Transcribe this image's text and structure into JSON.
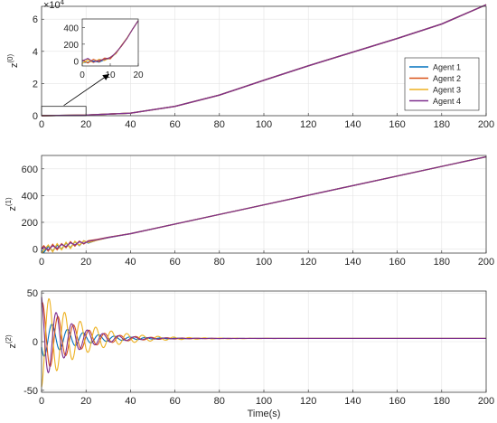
{
  "figure": {
    "xlabel": "Time(s)"
  },
  "colors": {
    "agent1": "#0072BD",
    "agent2": "#D95319",
    "agent3": "#EDB120",
    "agent4": "#7E2F8E",
    "grid": "#e3e3e3",
    "axis": "#262626"
  },
  "icons": {
    "arrow": "annotation-arrow-icon"
  },
  "chart_data": [
    {
      "type": "line",
      "ylabel": "z",
      "ylabel_sup": "(0)",
      "y_exponent_label": "×10",
      "y_exponent_sup": "4",
      "xlim": [
        0,
        200
      ],
      "ylim": [
        0,
        6.8
      ],
      "xticks": [
        0,
        20,
        40,
        60,
        80,
        100,
        120,
        140,
        160,
        180,
        200
      ],
      "yticks": [
        0,
        2,
        4,
        6
      ],
      "grid": true,
      "legend": {
        "position": "right",
        "entries": [
          "Agent 1",
          "Agent 2",
          "Agent 3",
          "Agent 4"
        ]
      },
      "series": [
        {
          "name": "Agent 1",
          "x": [
            0,
            20,
            40,
            60,
            80,
            100,
            120,
            140,
            160,
            180,
            200
          ],
          "values": [
            0,
            0.04,
            0.16,
            0.58,
            1.28,
            2.2,
            3.1,
            3.95,
            4.8,
            5.7,
            6.9
          ]
        },
        {
          "name": "Agent 2",
          "x": [
            0,
            20,
            40,
            60,
            80,
            100,
            120,
            140,
            160,
            180,
            200
          ],
          "values": [
            0,
            0.04,
            0.16,
            0.58,
            1.28,
            2.2,
            3.1,
            3.95,
            4.8,
            5.7,
            6.9
          ]
        },
        {
          "name": "Agent 3",
          "x": [
            0,
            20,
            40,
            60,
            80,
            100,
            120,
            140,
            160,
            180,
            200
          ],
          "values": [
            0,
            0.04,
            0.16,
            0.58,
            1.28,
            2.2,
            3.1,
            3.95,
            4.8,
            5.7,
            6.9
          ]
        },
        {
          "name": "Agent 4",
          "x": [
            0,
            20,
            40,
            60,
            80,
            100,
            120,
            140,
            160,
            180,
            200
          ],
          "values": [
            0,
            0.04,
            0.16,
            0.58,
            1.28,
            2.2,
            3.1,
            3.95,
            4.8,
            5.7,
            6.9
          ]
        }
      ],
      "inset": {
        "xlim": [
          0,
          20
        ],
        "ylim": [
          -60,
          500
        ],
        "xticks": [
          0,
          10,
          20
        ],
        "yticks": [
          0,
          200,
          400
        ],
        "series": [
          {
            "name": "Agent 1",
            "x": [
              0,
              2,
              4,
              6,
              8,
              10,
              12,
              14,
              16,
              18,
              20
            ],
            "values": [
              -20,
              -15,
              0,
              -15,
              15,
              30,
              90,
              180,
              270,
              380,
              480
            ]
          },
          {
            "name": "Agent 2",
            "x": [
              0,
              2,
              4,
              6,
              8,
              10,
              12,
              14,
              16,
              18,
              20
            ],
            "values": [
              10,
              -25,
              20,
              -10,
              35,
              25,
              100,
              175,
              270,
              380,
              480
            ]
          },
          {
            "name": "Agent 3",
            "x": [
              0,
              2,
              4,
              6,
              8,
              10,
              12,
              14,
              16,
              18,
              20
            ],
            "values": [
              -30,
              15,
              -20,
              20,
              5,
              45,
              85,
              185,
              275,
              380,
              480
            ]
          },
          {
            "name": "Agent 4",
            "x": [
              0,
              2,
              4,
              6,
              8,
              10,
              12,
              14,
              16,
              18,
              20
            ],
            "values": [
              0,
              30,
              -15,
              5,
              20,
              40,
              95,
              180,
              270,
              380,
              480
            ]
          }
        ]
      }
    },
    {
      "type": "line",
      "ylabel": "z",
      "ylabel_sup": "(1)",
      "xlim": [
        0,
        200
      ],
      "ylim": [
        -30,
        700
      ],
      "xticks": [
        0,
        20,
        40,
        60,
        80,
        100,
        120,
        140,
        160,
        180,
        200
      ],
      "yticks": [
        0,
        200,
        400,
        600
      ],
      "grid": true,
      "series": [
        {
          "name": "Agent 1",
          "x": [
            0,
            1,
            3,
            5,
            7,
            9,
            11,
            13,
            15,
            17,
            19,
            21,
            25,
            30,
            35,
            40,
            200
          ],
          "values": [
            -10,
            -25,
            20,
            -15,
            30,
            0,
            45,
            10,
            55,
            25,
            62,
            45,
            68,
            85,
            100,
            115,
            690
          ]
        },
        {
          "name": "Agent 2",
          "x": [
            0,
            1,
            3,
            5,
            7,
            9,
            11,
            13,
            15,
            17,
            19,
            21,
            25,
            30,
            35,
            40,
            200
          ],
          "values": [
            5,
            25,
            -15,
            35,
            -5,
            40,
            10,
            55,
            22,
            60,
            38,
            62,
            72,
            88,
            102,
            115,
            690
          ]
        },
        {
          "name": "Agent 3",
          "x": [
            0,
            1,
            3,
            5,
            7,
            9,
            11,
            13,
            15,
            17,
            19,
            21,
            25,
            30,
            35,
            40,
            200
          ],
          "values": [
            -30,
            -10,
            30,
            -20,
            40,
            -5,
            50,
            5,
            58,
            28,
            62,
            48,
            66,
            86,
            101,
            115,
            690
          ]
        },
        {
          "name": "Agent 4",
          "x": [
            0,
            1,
            3,
            5,
            7,
            9,
            11,
            13,
            15,
            17,
            19,
            21,
            25,
            30,
            35,
            40,
            200
          ],
          "values": [
            0,
            15,
            -5,
            25,
            5,
            35,
            18,
            48,
            30,
            55,
            42,
            58,
            70,
            87,
            101,
            115,
            690
          ]
        }
      ]
    },
    {
      "type": "line",
      "ylabel": "z",
      "ylabel_sup": "(2)",
      "xlim": [
        0,
        200
      ],
      "ylim": [
        -52,
        52
      ],
      "xticks": [
        0,
        20,
        40,
        60,
        80,
        100,
        120,
        140,
        160,
        180,
        200
      ],
      "yticks": [
        -50,
        0,
        50
      ],
      "grid": true,
      "series": [
        {
          "name": "Agent 1",
          "amp": 20,
          "phase": 3.6,
          "offset": 3.3,
          "decay": 0.065,
          "period": 7.0
        },
        {
          "name": "Agent 2",
          "amp": 38,
          "phase": 1.2,
          "offset": 3.3,
          "decay": 0.07,
          "period": 7.0
        },
        {
          "name": "Agent 3",
          "amp": 50,
          "phase": 4.8,
          "offset": 3.3,
          "decay": 0.06,
          "period": 7.0
        },
        {
          "name": "Agent 4",
          "amp": 45,
          "phase": 1.9,
          "offset": 3.3,
          "decay": 0.08,
          "period": 7.0
        }
      ]
    }
  ]
}
